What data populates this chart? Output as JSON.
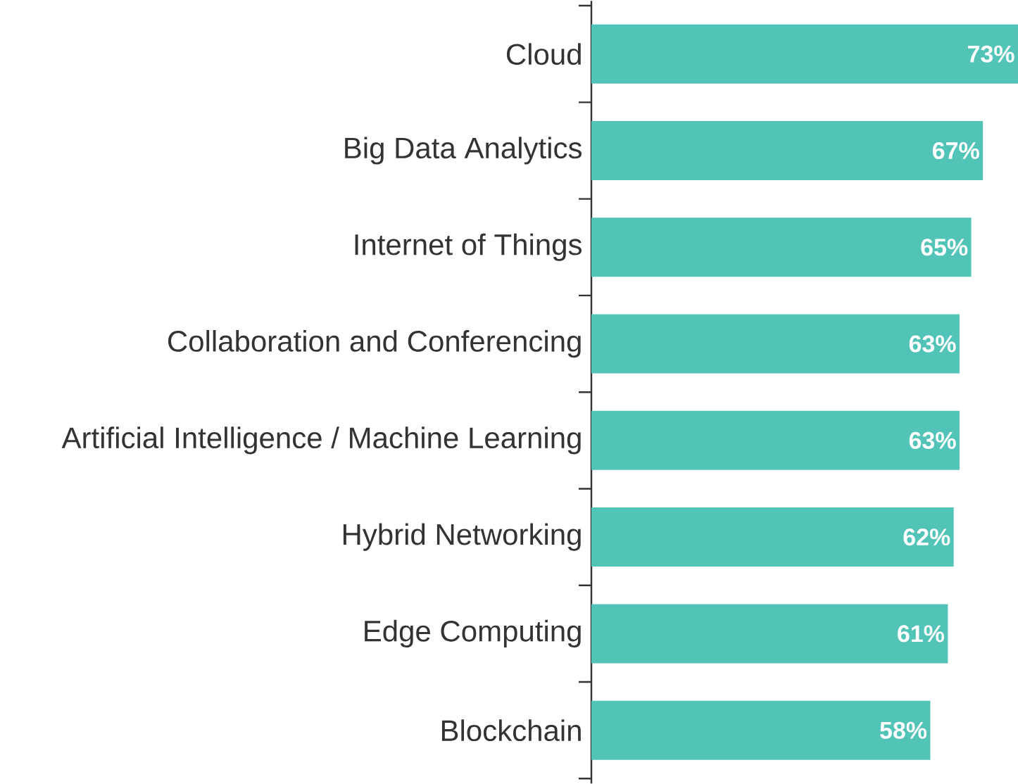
{
  "chart_data": {
    "type": "bar",
    "orientation": "horizontal",
    "categories": [
      "Cloud",
      "Big Data Analytics",
      "Internet of Things",
      "Collaboration and Conferencing",
      "Artificial Intelligence / Machine Learning",
      "Hybrid Networking",
      "Edge Computing",
      "Blockchain"
    ],
    "values": [
      73,
      67,
      65,
      63,
      63,
      62,
      61,
      58
    ],
    "value_labels": [
      "73%",
      "67%",
      "65%",
      "63%",
      "63%",
      "62%",
      "61%",
      "58%"
    ],
    "color": "#52c3b7"
  }
}
